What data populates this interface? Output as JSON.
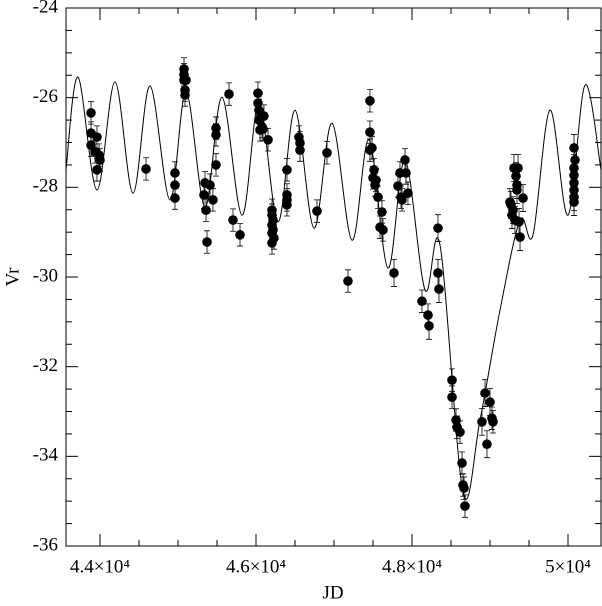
{
  "chart_data": {
    "type": "scatter",
    "x_label": "JD",
    "y_label": "Vr",
    "xlim": [
      43564,
      50423
    ],
    "ylim": [
      -36,
      -24
    ],
    "xticks": [
      {
        "value": 44000,
        "label": "4.4×10⁴"
      },
      {
        "value": 46000,
        "label": "4.6×10⁴"
      },
      {
        "value": 48000,
        "label": "4.8×10⁴"
      },
      {
        "value": 50000,
        "label": "5×10⁴"
      }
    ],
    "yticks": [
      -36,
      -34,
      -32,
      -30,
      -28,
      -26,
      -24
    ],
    "series": [
      {
        "mode": "markers",
        "color": "#000000",
        "x": [
          43885,
          43885,
          43885,
          43936,
          43961,
          43961,
          43987,
          44000,
          44590,
          44961,
          44961,
          44961,
          45077,
          45077,
          45077,
          45090,
          45090,
          45102,
          45333,
          45346,
          45359,
          45372,
          45410,
          45448,
          45487,
          45487,
          45487,
          45654,
          45705,
          45795,
          46025,
          46025,
          46038,
          46038,
          46051,
          46064,
          46077,
          46090,
          46102,
          46154,
          46205,
          46205,
          46205,
          46205,
          46205,
          46218,
          46218,
          46230,
          46397,
          46397,
          46397,
          46397,
          46551,
          46564,
          46564,
          46782,
          46910,
          47179,
          47461,
          47461,
          47461,
          47487,
          47500,
          47513,
          47526,
          47538,
          47564,
          47590,
          47615,
          47628,
          47769,
          47820,
          47846,
          47859,
          47872,
          47910,
          47923,
          47948,
          48128,
          48205,
          48218,
          48333,
          48333,
          48346,
          48513,
          48513,
          48564,
          48577,
          48615,
          48641,
          48654,
          48667,
          48679,
          48897,
          48936,
          48961,
          49000,
          49025,
          49038,
          49256,
          49269,
          49282,
          49295,
          49307,
          49320,
          49333,
          49346,
          49346,
          49359,
          49372,
          49385,
          49423,
          50077,
          50077,
          50077,
          50077,
          50077,
          50077,
          50077,
          50090
        ],
        "y": [
          -26.34,
          -26.79,
          -27.06,
          -27.21,
          -27.61,
          -26.88,
          -27.28,
          -27.39,
          -27.59,
          -27.68,
          -27.95,
          -28.24,
          -25.36,
          -25.49,
          -25.61,
          -25.83,
          -25.94,
          -25.61,
          -28.17,
          -27.9,
          -28.51,
          -29.22,
          -27.95,
          -28.28,
          -27.5,
          -26.68,
          -26.83,
          -25.92,
          -28.73,
          -29.06,
          -25.9,
          -26.12,
          -26.28,
          -26.5,
          -26.72,
          -26.41,
          -26.65,
          -26.7,
          -26.41,
          -26.94,
          -28.51,
          -28.62,
          -28.84,
          -29.02,
          -29.24,
          -28.73,
          -28.95,
          -29.13,
          -27.61,
          -28.17,
          -28.39,
          -28.28,
          -26.88,
          -27.01,
          -27.17,
          -28.53,
          -27.23,
          -30.09,
          -26.07,
          -26.77,
          -27.17,
          -27.12,
          -27.79,
          -27.61,
          -27.95,
          -27.84,
          -28.22,
          -28.89,
          -28.55,
          -28.95,
          -29.91,
          -27.97,
          -27.68,
          -28.22,
          -28.28,
          -27.39,
          -27.68,
          -28.13,
          -30.54,
          -30.85,
          -31.09,
          -28.91,
          -29.91,
          -30.27,
          -32.3,
          -32.68,
          -33.19,
          -33.35,
          -33.46,
          -34.15,
          -34.64,
          -34.71,
          -35.11,
          -33.23,
          -32.59,
          -33.73,
          -32.79,
          -33.15,
          -33.23,
          -28.33,
          -28.39,
          -28.62,
          -28.51,
          -27.57,
          -28.73,
          -27.75,
          -27.95,
          -28.06,
          -27.57,
          -28.77,
          -29.11,
          -28.24,
          -27.12,
          -27.57,
          -27.73,
          -27.9,
          -28.06,
          -28.22,
          -28.33,
          -27.39
        ],
        "yerr": [
          0.25,
          0.25,
          0.25,
          0.25,
          0.25,
          0.25,
          0.25,
          0.25,
          0.25,
          0.25,
          0.25,
          0.25,
          0.25,
          0.25,
          0.25,
          0.25,
          0.25,
          0.25,
          0.3,
          0.25,
          0.25,
          0.25,
          0.25,
          0.25,
          0.25,
          0.25,
          0.25,
          0.25,
          0.25,
          0.25,
          0.25,
          0.25,
          0.25,
          0.25,
          0.25,
          0.25,
          0.25,
          0.25,
          0.25,
          0.25,
          0.25,
          0.25,
          0.25,
          0.25,
          0.25,
          0.25,
          0.25,
          0.25,
          0.25,
          0.25,
          0.25,
          0.25,
          0.25,
          0.25,
          0.25,
          0.25,
          0.25,
          0.25,
          0.25,
          0.25,
          0.25,
          0.25,
          0.25,
          0.25,
          0.25,
          0.25,
          0.25,
          0.25,
          0.25,
          0.25,
          0.3,
          0.25,
          0.25,
          0.25,
          0.25,
          0.25,
          0.25,
          0.25,
          0.25,
          0.25,
          0.3,
          0.3,
          0.3,
          0.3,
          0.25,
          0.25,
          0.25,
          0.25,
          0.25,
          0.25,
          0.25,
          0.25,
          0.25,
          0.3,
          0.3,
          0.3,
          0.3,
          0.25,
          0.25,
          0.3,
          0.3,
          0.3,
          0.3,
          0.3,
          0.3,
          0.3,
          0.3,
          0.3,
          0.3,
          0.3,
          0.3,
          0.3,
          0.3,
          0.3,
          0.3,
          0.3,
          0.3,
          0.3,
          0.3,
          0.3
        ]
      },
      {
        "mode": "line",
        "color": "#000000",
        "x": [
          43564,
          43718,
          43961,
          44192,
          44423,
          44641,
          44897,
          45103,
          45346,
          45564,
          45821,
          46038,
          46282,
          46500,
          46744,
          46974,
          47231,
          47449,
          47692,
          47910,
          48167,
          48359,
          48654,
          48872,
          49128,
          49385,
          49551,
          49769,
          50000,
          50218,
          50423
        ],
        "y": [
          -27.61,
          -25.54,
          -28.06,
          -25.65,
          -28.13,
          -25.74,
          -28.28,
          -25.87,
          -28.44,
          -25.99,
          -28.62,
          -26.12,
          -28.77,
          -26.28,
          -28.91,
          -26.57,
          -29.18,
          -26.94,
          -29.8,
          -27.39,
          -30.29,
          -29.29,
          -34.8,
          -33.19,
          -30.74,
          -28.73,
          -29.06,
          -26.28,
          -28.62,
          -25.72,
          -27.61
        ]
      }
    ]
  }
}
